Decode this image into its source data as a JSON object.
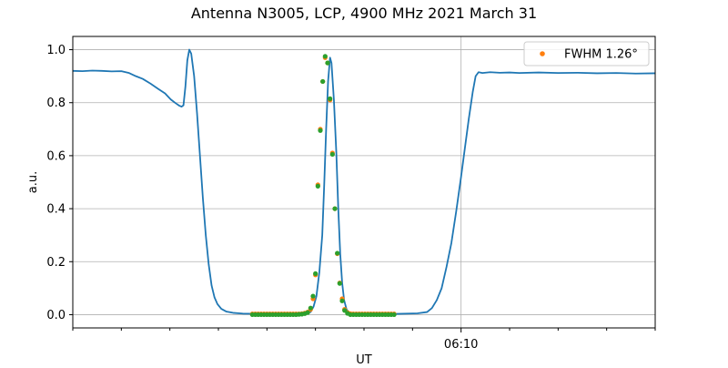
{
  "chart_data": {
    "type": "line",
    "title": "Antenna N3005, LCP, 4900 MHz 2021 March 31",
    "xlabel": "UT",
    "ylabel": "a.u.",
    "xlim": [
      -40,
      20
    ],
    "ylim": [
      -0.05,
      1.05
    ],
    "x_unit_note": "minutes relative to 06:10 UT",
    "x_ticks": [
      {
        "x": 0,
        "label": "06:10"
      }
    ],
    "x_minor_ticks": [
      -40,
      -35,
      -30,
      -25,
      -20,
      -15,
      -10,
      -5,
      5,
      10,
      15,
      20
    ],
    "y_ticks": [
      0.0,
      0.2,
      0.4,
      0.6,
      0.8,
      1.0
    ],
    "y_tick_labels": [
      "0.0",
      "0.2",
      "0.4",
      "0.6",
      "0.8",
      "1.0"
    ],
    "grid": true,
    "legend_position": "top-right",
    "legend": [
      {
        "label": "FWHM 1.26$^\\circ$",
        "display": "FWHM 1.26°",
        "color": "#ff7f0e"
      }
    ],
    "series": [
      {
        "kind": "line",
        "color": "#1f77b4",
        "points": [
          [
            -40.0,
            0.92
          ],
          [
            -39.0,
            0.919
          ],
          [
            -38.0,
            0.921
          ],
          [
            -37.0,
            0.92
          ],
          [
            -36.0,
            0.918
          ],
          [
            -35.0,
            0.919
          ],
          [
            -34.2,
            0.912
          ],
          [
            -33.5,
            0.9
          ],
          [
            -32.8,
            0.89
          ],
          [
            -32.0,
            0.872
          ],
          [
            -31.2,
            0.852
          ],
          [
            -30.5,
            0.835
          ],
          [
            -29.9,
            0.812
          ],
          [
            -29.4,
            0.798
          ],
          [
            -29.0,
            0.788
          ],
          [
            -28.8,
            0.785
          ],
          [
            -28.6,
            0.79
          ],
          [
            -28.4,
            0.86
          ],
          [
            -28.2,
            0.96
          ],
          [
            -28.0,
            1.0
          ],
          [
            -27.8,
            0.985
          ],
          [
            -27.5,
            0.9
          ],
          [
            -27.2,
            0.76
          ],
          [
            -26.9,
            0.6
          ],
          [
            -26.6,
            0.44
          ],
          [
            -26.3,
            0.3
          ],
          [
            -26.0,
            0.19
          ],
          [
            -25.7,
            0.11
          ],
          [
            -25.4,
            0.065
          ],
          [
            -25.1,
            0.04
          ],
          [
            -24.7,
            0.022
          ],
          [
            -24.2,
            0.012
          ],
          [
            -23.5,
            0.007
          ],
          [
            -22.5,
            0.004
          ],
          [
            -20.0,
            0.003
          ],
          [
            -17.0,
            0.003
          ],
          [
            -16.0,
            0.005
          ],
          [
            -15.5,
            0.01
          ],
          [
            -15.2,
            0.03
          ],
          [
            -14.9,
            0.07
          ],
          [
            -14.6,
            0.16
          ],
          [
            -14.3,
            0.3
          ],
          [
            -14.1,
            0.49
          ],
          [
            -13.9,
            0.7
          ],
          [
            -13.7,
            0.88
          ],
          [
            -13.5,
            0.97
          ],
          [
            -13.35,
            0.95
          ],
          [
            -13.1,
            0.81
          ],
          [
            -12.85,
            0.61
          ],
          [
            -12.65,
            0.4
          ],
          [
            -12.45,
            0.23
          ],
          [
            -12.25,
            0.12
          ],
          [
            -12.05,
            0.055
          ],
          [
            -11.8,
            0.02
          ],
          [
            -11.5,
            0.006
          ],
          [
            -11.0,
            0.003
          ],
          [
            -9.0,
            0.002
          ],
          [
            -6.5,
            0.003
          ],
          [
            -4.5,
            0.005
          ],
          [
            -3.5,
            0.01
          ],
          [
            -3.0,
            0.025
          ],
          [
            -2.5,
            0.055
          ],
          [
            -2.0,
            0.1
          ],
          [
            -1.5,
            0.18
          ],
          [
            -1.0,
            0.27
          ],
          [
            -0.5,
            0.39
          ],
          [
            0.0,
            0.52
          ],
          [
            0.4,
            0.63
          ],
          [
            0.8,
            0.74
          ],
          [
            1.2,
            0.84
          ],
          [
            1.5,
            0.9
          ],
          [
            1.8,
            0.915
          ],
          [
            2.2,
            0.912
          ],
          [
            3.0,
            0.915
          ],
          [
            4.0,
            0.913
          ],
          [
            5.0,
            0.914
          ],
          [
            6.0,
            0.912
          ],
          [
            8.0,
            0.914
          ],
          [
            10.0,
            0.912
          ],
          [
            12.0,
            0.913
          ],
          [
            14.0,
            0.911
          ],
          [
            16.0,
            0.912
          ],
          [
            18.0,
            0.91
          ],
          [
            20.0,
            0.911
          ]
        ]
      },
      {
        "kind": "scatter",
        "color": "#ff7f0e",
        "label": "FWHM 1.26°",
        "points": [
          [
            -21.5,
            0.003
          ],
          [
            -21.2,
            0.003
          ],
          [
            -20.9,
            0.003
          ],
          [
            -20.6,
            0.003
          ],
          [
            -20.3,
            0.003
          ],
          [
            -20.0,
            0.003
          ],
          [
            -19.7,
            0.003
          ],
          [
            -19.4,
            0.003
          ],
          [
            -19.1,
            0.003
          ],
          [
            -18.8,
            0.003
          ],
          [
            -18.5,
            0.003
          ],
          [
            -18.2,
            0.003
          ],
          [
            -17.9,
            0.003
          ],
          [
            -17.6,
            0.003
          ],
          [
            -17.3,
            0.003
          ],
          [
            -17.0,
            0.003
          ],
          [
            -16.7,
            0.003
          ],
          [
            -16.4,
            0.004
          ],
          [
            -16.1,
            0.006
          ],
          [
            -15.8,
            0.01
          ],
          [
            -15.5,
            0.02
          ],
          [
            -15.25,
            0.06
          ],
          [
            -15.0,
            0.15
          ],
          [
            -14.75,
            0.49
          ],
          [
            -14.5,
            0.7
          ],
          [
            -14.25,
            0.88
          ],
          [
            -14.0,
            0.97
          ],
          [
            -13.75,
            0.95
          ],
          [
            -13.5,
            0.81
          ],
          [
            -13.25,
            0.61
          ],
          [
            -13.0,
            0.4
          ],
          [
            -12.75,
            0.23
          ],
          [
            -12.5,
            0.12
          ],
          [
            -12.25,
            0.06
          ],
          [
            -12.0,
            0.02
          ],
          [
            -11.7,
            0.008
          ],
          [
            -11.4,
            0.004
          ],
          [
            -11.1,
            0.003
          ],
          [
            -10.8,
            0.003
          ],
          [
            -10.5,
            0.003
          ],
          [
            -10.2,
            0.003
          ],
          [
            -9.9,
            0.003
          ],
          [
            -9.6,
            0.003
          ],
          [
            -9.3,
            0.003
          ],
          [
            -9.0,
            0.003
          ],
          [
            -8.7,
            0.003
          ],
          [
            -8.4,
            0.003
          ],
          [
            -8.1,
            0.003
          ],
          [
            -7.8,
            0.003
          ],
          [
            -7.5,
            0.003
          ],
          [
            -7.2,
            0.003
          ],
          [
            -6.9,
            0.003
          ]
        ]
      },
      {
        "kind": "scatter",
        "color": "#2ca02c",
        "points": [
          [
            -21.5,
            0.0
          ],
          [
            -21.2,
            0.0
          ],
          [
            -20.9,
            0.0
          ],
          [
            -20.6,
            0.0
          ],
          [
            -20.3,
            0.0
          ],
          [
            -20.0,
            0.0
          ],
          [
            -19.7,
            0.0
          ],
          [
            -19.4,
            0.0
          ],
          [
            -19.1,
            0.0
          ],
          [
            -18.8,
            0.0
          ],
          [
            -18.5,
            0.0
          ],
          [
            -18.2,
            0.0
          ],
          [
            -17.9,
            0.0
          ],
          [
            -17.6,
            0.0
          ],
          [
            -17.3,
            0.0
          ],
          [
            -17.0,
            0.0
          ],
          [
            -16.7,
            0.001
          ],
          [
            -16.4,
            0.002
          ],
          [
            -16.1,
            0.004
          ],
          [
            -15.8,
            0.008
          ],
          [
            -15.5,
            0.025
          ],
          [
            -15.25,
            0.07
          ],
          [
            -15.0,
            0.155
          ],
          [
            -14.75,
            0.485
          ],
          [
            -14.5,
            0.695
          ],
          [
            -14.25,
            0.88
          ],
          [
            -14.0,
            0.975
          ],
          [
            -13.75,
            0.95
          ],
          [
            -13.5,
            0.815
          ],
          [
            -13.25,
            0.605
          ],
          [
            -13.0,
            0.4
          ],
          [
            -12.75,
            0.232
          ],
          [
            -12.5,
            0.118
          ],
          [
            -12.25,
            0.052
          ],
          [
            -12.0,
            0.016
          ],
          [
            -11.7,
            0.005
          ],
          [
            -11.4,
            0.0
          ],
          [
            -11.1,
            0.0
          ],
          [
            -10.8,
            0.0
          ],
          [
            -10.5,
            0.0
          ],
          [
            -10.2,
            0.0
          ],
          [
            -9.9,
            0.0
          ],
          [
            -9.6,
            0.0
          ],
          [
            -9.3,
            0.0
          ],
          [
            -9.0,
            0.0
          ],
          [
            -8.7,
            0.0
          ],
          [
            -8.4,
            0.0
          ],
          [
            -8.1,
            0.0
          ],
          [
            -7.8,
            0.0
          ],
          [
            -7.5,
            0.0
          ],
          [
            -7.2,
            0.0
          ],
          [
            -6.9,
            0.0
          ]
        ]
      }
    ]
  }
}
